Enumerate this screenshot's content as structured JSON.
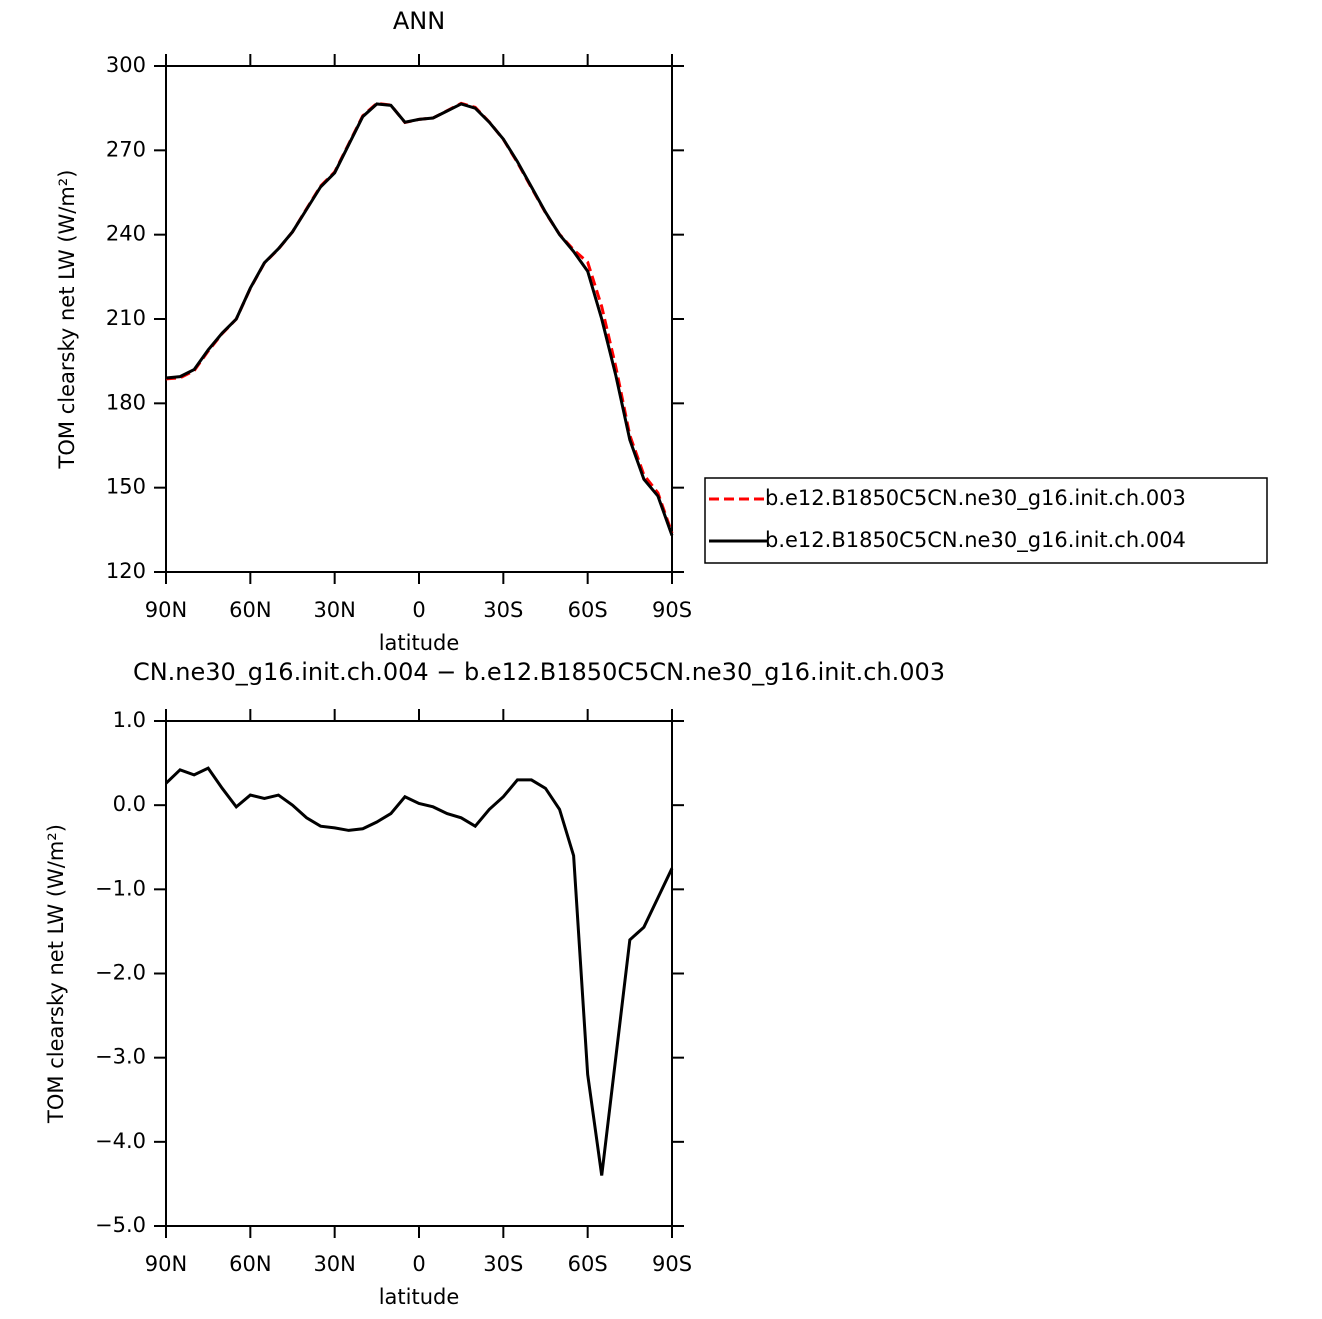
{
  "chart_data": [
    {
      "type": "line",
      "title": "ANN",
      "xlabel": "latitude",
      "ylabel": "TOM clearsky net LW (W/m²)",
      "x": [
        90,
        85,
        80,
        75,
        70,
        65,
        60,
        55,
        50,
        45,
        40,
        35,
        30,
        25,
        20,
        15,
        10,
        5,
        0,
        -5,
        -10,
        -15,
        -20,
        -25,
        -30,
        -35,
        -40,
        -45,
        -50,
        -55,
        -60,
        -65,
        -70,
        -75,
        -80,
        -85,
        -90
      ],
      "series": [
        {
          "name": "b.e12.B1850C5CN.ne30_g16.init.ch.003",
          "color": "#ff0000",
          "linestyle": "dashed",
          "values": [
            188.7,
            189.1,
            191.6,
            198.6,
            204.8,
            210,
            220.9,
            229.9,
            234.9,
            241,
            249.2,
            257.3,
            262.3,
            272.3,
            282.3,
            286.7,
            286.1,
            279.9,
            281,
            281.5,
            284.1,
            286.7,
            285.3,
            280.1,
            273.9,
            265.7,
            256.7,
            247.8,
            240.1,
            234.6,
            230.2,
            214.4,
            193,
            168.6,
            154.5,
            148.1,
            133.8
          ]
        },
        {
          "name": "b.e12.B1850C5CN.ne30_g16.init.ch.004",
          "color": "#000000",
          "linestyle": "solid",
          "values": [
            189,
            189.5,
            192,
            199,
            205,
            210,
            221,
            230,
            235,
            241,
            249,
            257,
            262,
            272,
            282,
            286.5,
            286,
            280,
            281,
            281.5,
            284,
            286.5,
            285,
            280,
            274,
            266,
            257,
            248,
            240,
            234,
            227,
            210,
            190,
            167,
            153,
            147,
            133
          ]
        }
      ],
      "xlim": [
        90,
        -90
      ],
      "xticks": [
        {
          "value": 90,
          "label": "90N"
        },
        {
          "value": 60,
          "label": "60N"
        },
        {
          "value": 30,
          "label": "30N"
        },
        0,
        {
          "value": -30,
          "label": "30S"
        },
        {
          "value": -60,
          "label": "60S"
        },
        {
          "value": -90,
          "label": "90S"
        }
      ],
      "ylim": [
        120,
        300
      ],
      "yticks": [
        120,
        150,
        180,
        210,
        240,
        270,
        300
      ]
    },
    {
      "type": "line",
      "title": "CN.ne30_g16.init.ch.004 − b.e12.B1850C5CN.ne30_g16.init.ch.003",
      "xlabel": "latitude",
      "ylabel": "TOM clearsky net LW (W/m²)",
      "x": [
        90,
        85,
        80,
        75,
        70,
        65,
        60,
        55,
        50,
        45,
        40,
        35,
        30,
        25,
        20,
        15,
        10,
        5,
        0,
        -5,
        -10,
        -15,
        -20,
        -25,
        -30,
        -35,
        -40,
        -45,
        -50,
        -55,
        -60,
        -65,
        -70,
        -75,
        -80,
        -85,
        -90
      ],
      "series": [
        {
          "color": "#000000",
          "linestyle": "solid",
          "values": [
            0.26,
            0.42,
            0.36,
            0.44,
            0.2,
            -0.02,
            0.12,
            0.08,
            0.12,
            0,
            -0.15,
            -0.25,
            -0.27,
            -0.3,
            -0.28,
            -0.2,
            -0.1,
            0.1,
            0.02,
            -0.02,
            -0.1,
            -0.15,
            -0.25,
            -0.05,
            0.1,
            0.3,
            0.3,
            0.2,
            -0.05,
            -0.6,
            -3.2,
            -4.4,
            -3,
            -1.6,
            -1.45,
            -1.1,
            -0.75
          ]
        }
      ],
      "xlim": [
        90,
        -90
      ],
      "xticks": [
        {
          "value": 90,
          "label": "90N"
        },
        {
          "value": 60,
          "label": "60N"
        },
        {
          "value": 30,
          "label": "30N"
        },
        0,
        {
          "value": -30,
          "label": "30S"
        },
        {
          "value": -60,
          "label": "60S"
        },
        {
          "value": -90,
          "label": "90S"
        }
      ],
      "ylim": [
        -5,
        1
      ],
      "yticks": [
        {
          "value": -5,
          "label": "−5.0"
        },
        {
          "value": -4,
          "label": "−4.0"
        },
        {
          "value": -3,
          "label": "−3.0"
        },
        {
          "value": -2,
          "label": "−2.0"
        },
        {
          "value": -1,
          "label": "−1.0"
        },
        {
          "value": 0,
          "label": "0.0"
        },
        {
          "value": 1,
          "label": "1.0"
        }
      ]
    }
  ]
}
